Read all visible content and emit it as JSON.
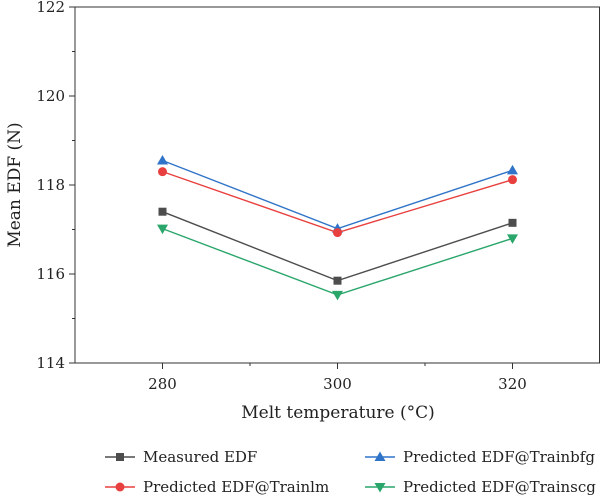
{
  "chart_data": {
    "type": "line",
    "xlabel": "Melt temperature (°C)",
    "ylabel": "Mean EDF (N)",
    "x": [
      280,
      300,
      320
    ],
    "xticks": [
      280,
      300,
      320
    ],
    "xlim": [
      270,
      330
    ],
    "ylim": [
      114,
      122
    ],
    "yticks": [
      114,
      116,
      118,
      120,
      122
    ],
    "grid": false,
    "legend_position": "bottom",
    "series": [
      {
        "name": "Measured EDF",
        "values": [
          117.4,
          115.85,
          117.15
        ],
        "color": "#4d4d4d",
        "marker": "square"
      },
      {
        "name": "Predicted EDF@Trainbfg",
        "values": [
          118.55,
          117.02,
          118.33
        ],
        "color": "#2f74c8",
        "marker": "triangle-up"
      },
      {
        "name": "Predicted EDF@Trainlm",
        "values": [
          118.3,
          116.93,
          118.12
        ],
        "color": "#e8403f",
        "marker": "circle"
      },
      {
        "name": "Predicted EDF@Trainscg",
        "values": [
          117.02,
          115.53,
          116.8
        ],
        "color": "#2aa66b",
        "marker": "triangle-down"
      }
    ]
  }
}
